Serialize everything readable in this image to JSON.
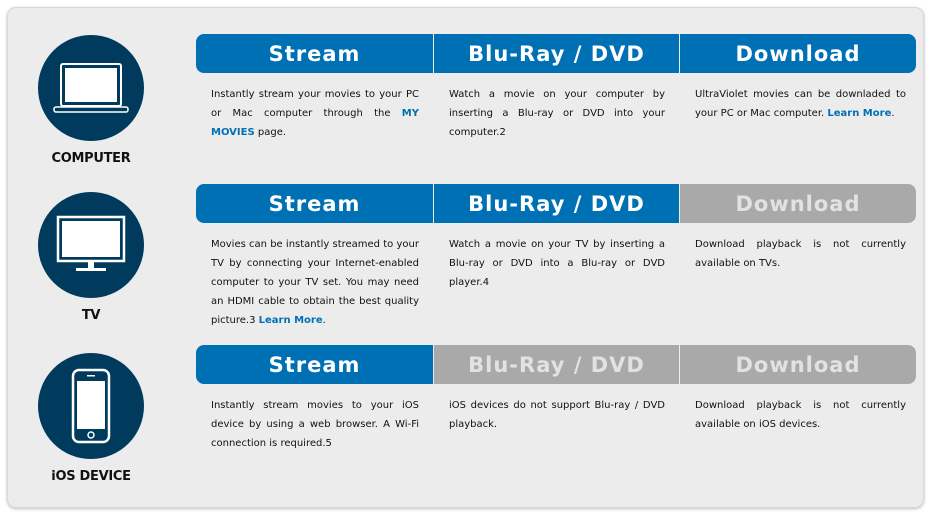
{
  "colors": {
    "active": "#0070b5",
    "inactive": "#a9a9a9",
    "icon_circle": "#003a5c",
    "panel": "#ececec"
  },
  "rows": [
    {
      "device": "COMPUTER",
      "icon": "laptop-icon",
      "headers": [
        {
          "label": "Stream",
          "active": true
        },
        {
          "label": "Blu-Ray / DVD",
          "active": true
        },
        {
          "label": "Download",
          "active": true
        }
      ],
      "stream": {
        "text": "Instantly stream your movies to your PC or Mac computer through the ",
        "link": "MY MOVIES",
        "after": " page."
      },
      "bluray": {
        "text": "Watch a movie on your computer by inserting a Blu-ray or DVD into your computer.2"
      },
      "download": {
        "text": "UltraViolet movies can be downladed to your PC or Mac computer. ",
        "link": "Learn More",
        "after": "."
      }
    },
    {
      "device": "TV",
      "icon": "tv-icon",
      "headers": [
        {
          "label": "Stream",
          "active": true
        },
        {
          "label": "Blu-Ray / DVD",
          "active": true
        },
        {
          "label": "Download",
          "active": false
        }
      ],
      "stream": {
        "text": "Movies can be instantly streamed to your TV by connecting your Internet-enabled computer to your TV set. You may need an HDMI cable to obtain the best quality picture.3 ",
        "link": "Learn More",
        "after": "."
      },
      "bluray": {
        "text": "Watch a movie on your TV by inserting a Blu-ray or DVD into a Blu-ray or DVD player.4"
      },
      "download": {
        "text": "Download playback is not currently available on TVs."
      }
    },
    {
      "device": "iOS DEVICE",
      "icon": "smartphone-icon",
      "headers": [
        {
          "label": "Stream",
          "active": true
        },
        {
          "label": "Blu-Ray / DVD",
          "active": false
        },
        {
          "label": "Download",
          "active": false
        }
      ],
      "stream": {
        "text": "Instantly stream movies to your iOS device by using a web browser. A Wi-Fi connection is required.5"
      },
      "bluray": {
        "text": "iOS devices do not support Blu-ray / DVD playback."
      },
      "download": {
        "text": "Download playback is not currently available on iOS devices."
      }
    }
  ]
}
